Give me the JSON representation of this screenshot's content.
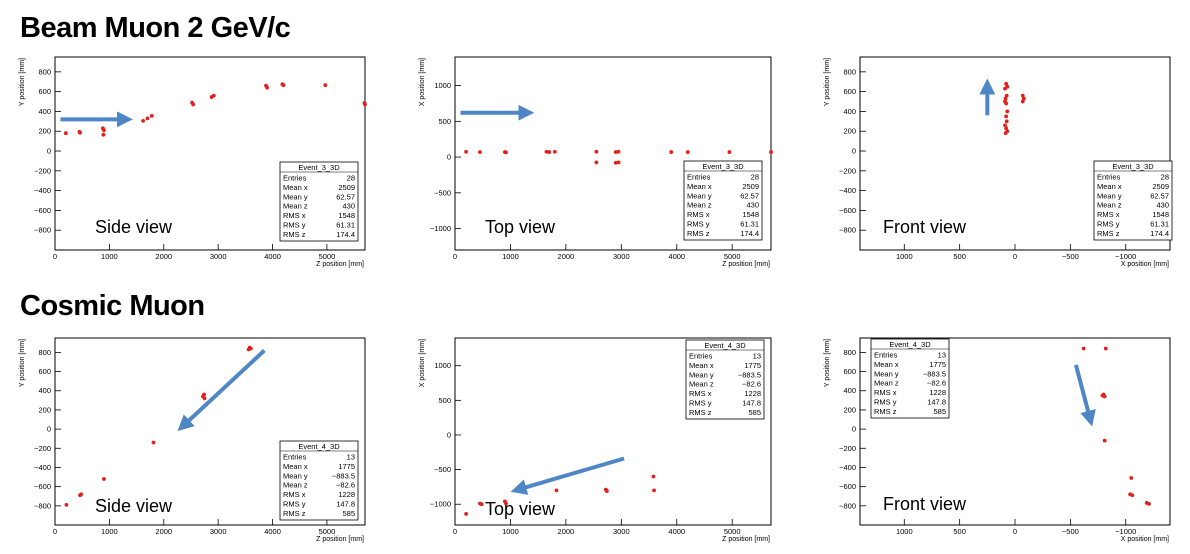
{
  "titles": [
    "Beam Muon 2 GeV/c",
    "Cosmic Muon"
  ],
  "stats_rows": [
    "Entries",
    "Mean x",
    "Mean y",
    "Mean z",
    "RMS x",
    "RMS y",
    "RMS z"
  ],
  "colors": {
    "points": "#e3201b",
    "arrow": "#4f86c6",
    "frame": "#000000",
    "background": "#ffffff"
  },
  "chart_data": [
    {
      "type": "scatter",
      "panel": "beam-side",
      "xlabel": "Z position [mm]",
      "ylabel": "Y position [mm]",
      "xlim": [
        0,
        5700
      ],
      "ylim": [
        -1000,
        950
      ],
      "xticks": [
        0,
        1000,
        2000,
        3000,
        4000,
        5000
      ],
      "yticks": [
        -800,
        -600,
        -400,
        -200,
        0,
        200,
        400,
        600,
        800
      ],
      "view_label": "Side view",
      "stats": {
        "name": "Event_3_3D",
        "values": [
          "28",
          "2509",
          "62.57",
          "430",
          "1548",
          "61.31",
          "174.4"
        ]
      },
      "points": [
        [
          200,
          180
        ],
        [
          450,
          195
        ],
        [
          460,
          185
        ],
        [
          880,
          230
        ],
        [
          900,
          210
        ],
        [
          890,
          165
        ],
        [
          1620,
          305
        ],
        [
          1700,
          330
        ],
        [
          1780,
          355
        ],
        [
          2520,
          490
        ],
        [
          2540,
          470
        ],
        [
          2880,
          545
        ],
        [
          2920,
          560
        ],
        [
          3880,
          660
        ],
        [
          3900,
          640
        ],
        [
          4180,
          675
        ],
        [
          4200,
          665
        ],
        [
          4970,
          665
        ],
        [
          5690,
          485
        ],
        [
          5700,
          470
        ]
      ],
      "arrow": [
        [
          100,
          320
        ],
        [
          1300,
          320
        ]
      ]
    },
    {
      "type": "scatter",
      "panel": "beam-top",
      "xlabel": "Z position [mm]",
      "ylabel": "X position [mm]",
      "xlim": [
        0,
        5700
      ],
      "ylim": [
        -1300,
        1400
      ],
      "xticks": [
        0,
        1000,
        2000,
        3000,
        4000,
        5000
      ],
      "yticks": [
        -1000,
        -500,
        0,
        500,
        1000
      ],
      "view_label": "Top view",
      "stats": {
        "name": "Event_3_3D",
        "values": [
          "28",
          "2509",
          "62.57",
          "430",
          "1548",
          "61.31",
          "174.4"
        ]
      },
      "points": [
        [
          200,
          75
        ],
        [
          450,
          70
        ],
        [
          900,
          70
        ],
        [
          920,
          65
        ],
        [
          1650,
          75
        ],
        [
          1700,
          70
        ],
        [
          1800,
          75
        ],
        [
          2550,
          75
        ],
        [
          2550,
          -75
        ],
        [
          2900,
          70
        ],
        [
          2950,
          75
        ],
        [
          2900,
          -80
        ],
        [
          2950,
          -75
        ],
        [
          3900,
          70
        ],
        [
          4200,
          70
        ],
        [
          4950,
          70
        ],
        [
          5700,
          70
        ]
      ],
      "arrow": [
        [
          100,
          620
        ],
        [
          1300,
          620
        ]
      ]
    },
    {
      "type": "scatter",
      "panel": "beam-front",
      "xlabel": "X position [mm]",
      "ylabel": "Y position [mm]",
      "xlim": [
        1400,
        -1400
      ],
      "ylim": [
        -1000,
        950
      ],
      "xticks": [
        1000,
        500,
        0,
        -500,
        -1000
      ],
      "yticks": [
        -800,
        -600,
        -400,
        -200,
        0,
        200,
        400,
        600,
        800
      ],
      "view_label": "Front view",
      "stats": {
        "name": "Event_3_3D",
        "values": [
          "28",
          "2509",
          "62.57",
          "430",
          "1548",
          "61.31",
          "174.4"
        ]
      },
      "points": [
        [
          80,
          680
        ],
        [
          70,
          650
        ],
        [
          90,
          630
        ],
        [
          75,
          560
        ],
        [
          85,
          530
        ],
        [
          90,
          500
        ],
        [
          80,
          480
        ],
        [
          70,
          400
        ],
        [
          80,
          350
        ],
        [
          75,
          300
        ],
        [
          90,
          260
        ],
        [
          80,
          230
        ],
        [
          70,
          200
        ],
        [
          85,
          180
        ],
        [
          -70,
          560
        ],
        [
          -80,
          530
        ],
        [
          -70,
          500
        ]
      ],
      "arrow": [
        [
          250,
          360
        ],
        [
          250,
          660
        ]
      ]
    },
    {
      "type": "scatter",
      "panel": "cosmic-side",
      "xlabel": "Z position [mm]",
      "ylabel": "Y position [mm]",
      "xlim": [
        0,
        5700
      ],
      "ylim": [
        -1000,
        950
      ],
      "xticks": [
        0,
        1000,
        2000,
        3000,
        4000,
        5000
      ],
      "yticks": [
        -800,
        -600,
        -400,
        -200,
        0,
        200,
        400,
        600,
        800
      ],
      "view_label": "Side view",
      "stats": {
        "name": "Event_4_3D",
        "values": [
          "13",
          "1775",
          "−883.5",
          "−82.6",
          "1228",
          "147.8",
          "585"
        ]
      },
      "points": [
        [
          210,
          -790
        ],
        [
          460,
          -690
        ],
        [
          480,
          -680
        ],
        [
          900,
          -520
        ],
        [
          1810,
          -140
        ],
        [
          2720,
          340
        ],
        [
          2740,
          360
        ],
        [
          2750,
          320
        ],
        [
          3560,
          830
        ],
        [
          3580,
          850
        ],
        [
          3600,
          840
        ]
      ],
      "arrow": [
        [
          3850,
          820
        ],
        [
          2350,
          30
        ]
      ]
    },
    {
      "type": "scatter",
      "panel": "cosmic-top",
      "xlabel": "Z position [mm]",
      "ylabel": "X position [mm]",
      "xlim": [
        0,
        5700
      ],
      "ylim": [
        -1300,
        1400
      ],
      "xticks": [
        0,
        1000,
        2000,
        3000,
        4000,
        5000
      ],
      "yticks": [
        -1000,
        -500,
        0,
        500,
        1000
      ],
      "view_label": "Top view",
      "stats": {
        "name": "Event_4_3D",
        "values": [
          "13",
          "1775",
          "−883.5",
          "−82.6",
          "1228",
          "147.8",
          "585"
        ]
      },
      "points": [
        [
          200,
          -1140
        ],
        [
          450,
          -990
        ],
        [
          480,
          -1000
        ],
        [
          900,
          -960
        ],
        [
          920,
          -990
        ],
        [
          1830,
          -800
        ],
        [
          2720,
          -790
        ],
        [
          2740,
          -810
        ],
        [
          3580,
          -600
        ],
        [
          3590,
          -800
        ]
      ],
      "arrow": [
        [
          3050,
          -340
        ],
        [
          1130,
          -790
        ]
      ]
    },
    {
      "type": "scatter",
      "panel": "cosmic-front",
      "xlabel": "X position [mm]",
      "ylabel": "Y position [mm]",
      "xlim": [
        1400,
        -1400
      ],
      "ylim": [
        -1000,
        950
      ],
      "xticks": [
        1000,
        500,
        0,
        -500,
        -1000
      ],
      "yticks": [
        -800,
        -600,
        -400,
        -200,
        0,
        200,
        400,
        600,
        800
      ],
      "view_label": "Front view",
      "stats": {
        "name": "Event_4_3D",
        "values": [
          "13",
          "1775",
          "−883.5",
          "−82.6",
          "1228",
          "147.8",
          "585"
        ]
      },
      "points": [
        [
          -620,
          840
        ],
        [
          -820,
          840
        ],
        [
          -800,
          360
        ],
        [
          -810,
          340
        ],
        [
          -790,
          350
        ],
        [
          -810,
          -120
        ],
        [
          -1050,
          -510
        ],
        [
          -1040,
          -680
        ],
        [
          -1060,
          -690
        ],
        [
          -1190,
          -770
        ],
        [
          -1210,
          -780
        ]
      ],
      "arrow": [
        [
          -550,
          670
        ],
        [
          -680,
          100
        ]
      ]
    }
  ]
}
